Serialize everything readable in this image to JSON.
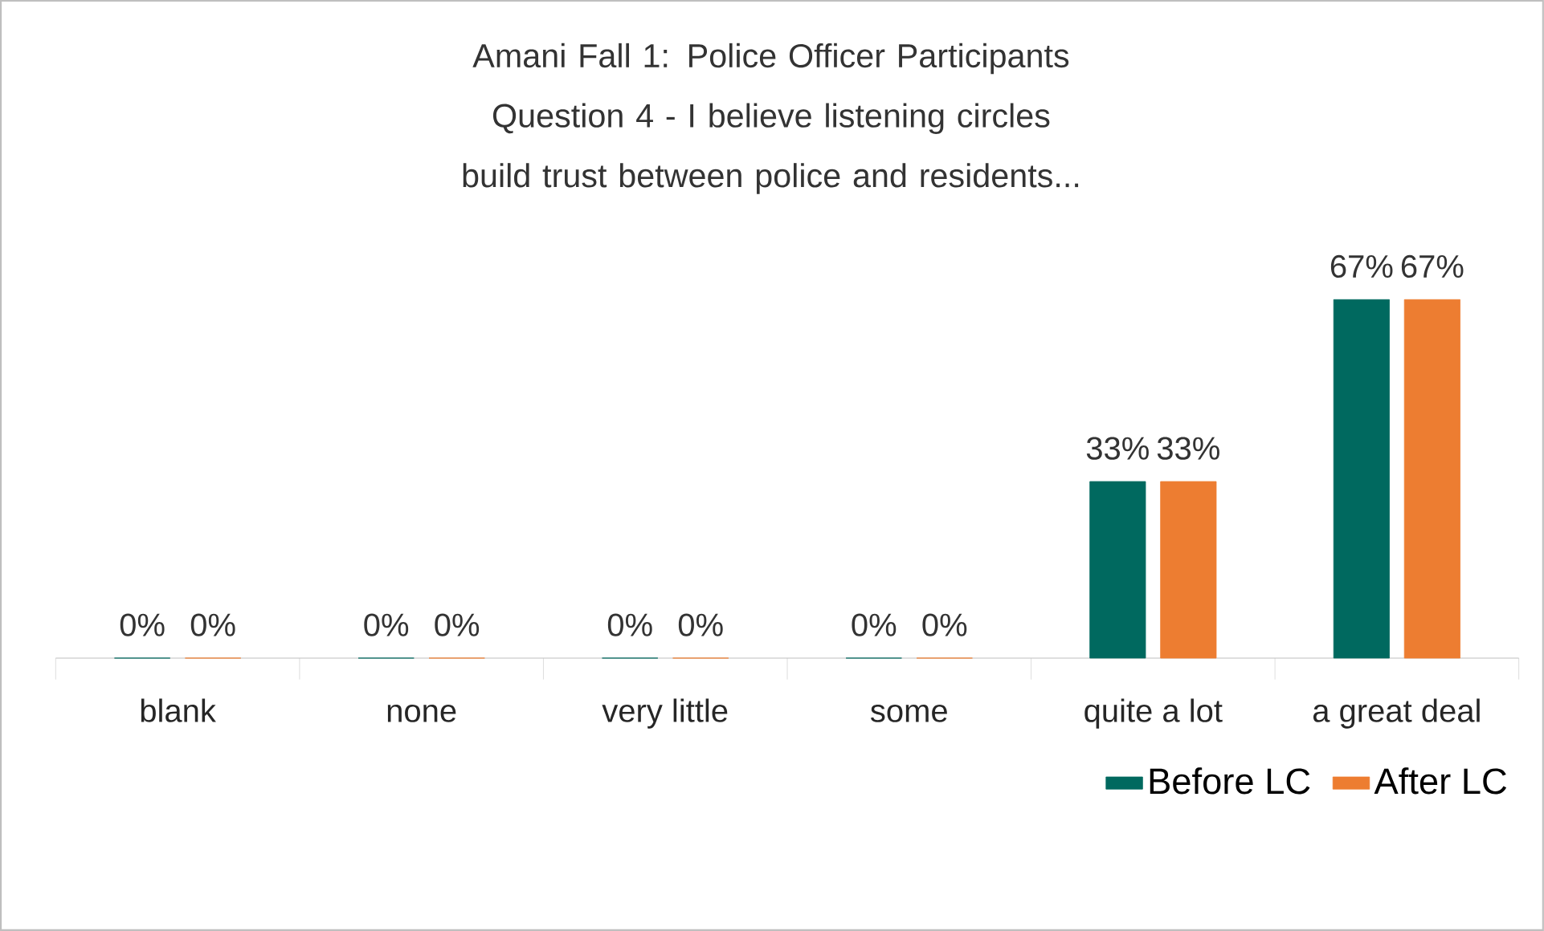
{
  "chart_data": {
    "type": "bar",
    "title": "Amani Fall 1: Police Officer Participants",
    "subtitle": "Question 4 - I believe listening circles build trust between police and residents...",
    "categories": [
      "blank",
      "none",
      "very little",
      "some",
      "quite a lot",
      "a great deal"
    ],
    "series": [
      {
        "name": "Before LC",
        "color": "#00695f",
        "values": [
          0,
          0,
          0,
          0,
          33,
          67
        ],
        "value_labels": [
          "0%",
          "0%",
          "0%",
          "0%",
          "33%",
          "67%"
        ]
      },
      {
        "name": "After LC",
        "color": "#ed7d31",
        "values": [
          0,
          0,
          0,
          0,
          33,
          67
        ],
        "value_labels": [
          "0%",
          "0%",
          "0%",
          "0%",
          "33%",
          "67%"
        ]
      }
    ],
    "legend": "bottom right"
  }
}
